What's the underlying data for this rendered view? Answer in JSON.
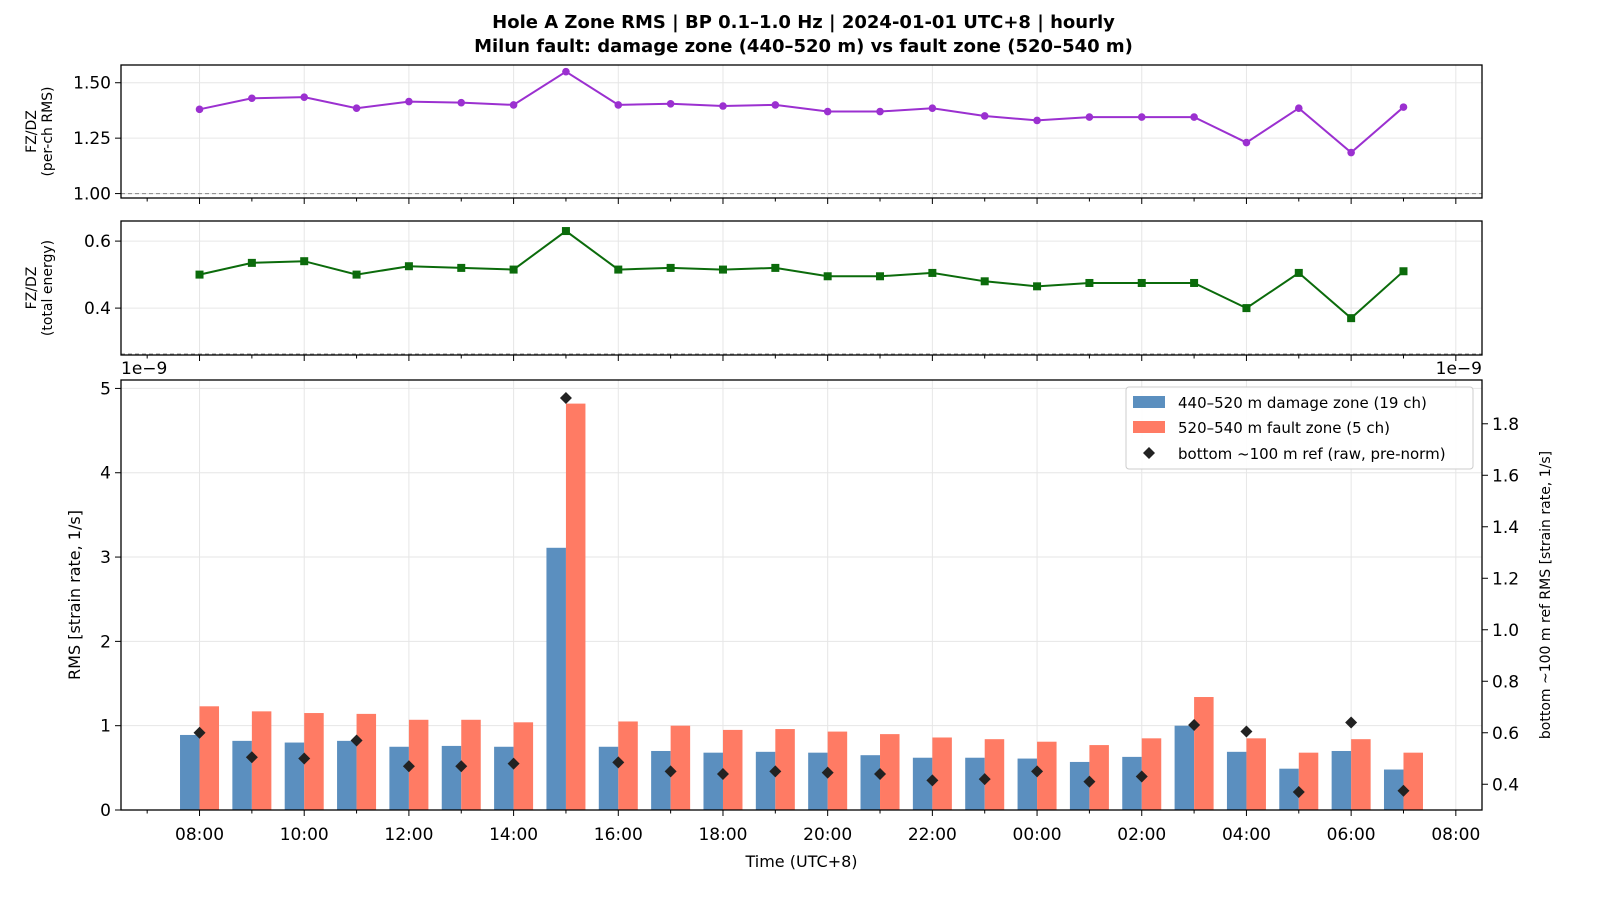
{
  "title_line1": "Hole A Zone RMS  |  BP 0.1–1.0 Hz  |  2024-01-01 UTC+8  |  hourly",
  "title_line2": "Milun fault: damage zone (440–520 m) vs fault zone (520–540 m)",
  "colors": {
    "damage": "#5b8fbf",
    "fault": "#ff7b64",
    "ratio_rms": "#9b30d0",
    "ratio_energy": "#0b6b0b",
    "ref": "#222222"
  },
  "chart_data": [
    {
      "type": "line",
      "ylabel": "FZ/DZ\n(per-ch RMS)",
      "ylim": [
        0.98,
        1.58
      ],
      "yticks": [
        "1.00",
        "1.25",
        "1.50"
      ],
      "reference_line": 1.0,
      "grid": true,
      "x_hours": [
        0,
        1,
        2,
        3,
        4,
        5,
        6,
        7,
        8,
        9,
        10,
        11,
        12,
        13,
        14,
        15,
        16,
        17,
        18,
        19,
        20,
        21,
        22,
        23
      ],
      "series": [
        {
          "values": [
            1.38,
            1.43,
            1.435,
            1.385,
            1.415,
            1.41,
            1.4,
            1.55,
            1.4,
            1.405,
            1.395,
            1.4,
            1.37,
            1.37,
            1.385,
            1.35,
            1.33,
            1.345,
            1.345,
            1.345,
            1.23,
            1.385,
            1.185,
            1.39
          ]
        }
      ]
    },
    {
      "type": "line",
      "ylabel": "FZ/DZ\n(total energy)",
      "ylim": [
        0.26,
        0.66
      ],
      "yticks": [
        "0.4",
        "0.6"
      ],
      "reference_line": 0.263,
      "grid": true,
      "x_hours": [
        0,
        1,
        2,
        3,
        4,
        5,
        6,
        7,
        8,
        9,
        10,
        11,
        12,
        13,
        14,
        15,
        16,
        17,
        18,
        19,
        20,
        21,
        22,
        23
      ],
      "series": [
        {
          "values": [
            0.5,
            0.535,
            0.54,
            0.5,
            0.525,
            0.52,
            0.515,
            0.63,
            0.515,
            0.52,
            0.515,
            0.52,
            0.495,
            0.495,
            0.505,
            0.48,
            0.465,
            0.475,
            0.475,
            0.475,
            0.4,
            0.505,
            0.37,
            0.51
          ]
        }
      ]
    },
    {
      "type": "bar",
      "xlabel": "Time (UTC+8)",
      "ylabel": "RMS  [strain rate, 1/s]",
      "y_scale_label": "1e−9",
      "ylim": [
        0,
        5.1
      ],
      "yticks": [
        "0",
        "1",
        "2",
        "3",
        "4",
        "5"
      ],
      "y2label": "bottom ~100 m ref RMS  [strain rate, 1/s]",
      "y2_scale_label": "1e−9",
      "y2lim": [
        0.3,
        1.97
      ],
      "y2ticks": [
        "0.4",
        "0.6",
        "0.8",
        "1.0",
        "1.2",
        "1.4",
        "1.6",
        "1.8"
      ],
      "x_tick_labels": [
        "08:00",
        "10:00",
        "12:00",
        "14:00",
        "16:00",
        "18:00",
        "20:00",
        "22:00",
        "00:00",
        "02:00",
        "04:00",
        "06:00",
        "08:00"
      ],
      "grid": true,
      "legend_position": "top-right",
      "series": [
        {
          "name": "440–520 m  damage zone (19 ch)",
          "values": [
            0.89,
            0.82,
            0.8,
            0.82,
            0.75,
            0.76,
            0.75,
            3.11,
            0.75,
            0.7,
            0.68,
            0.69,
            0.68,
            0.65,
            0.62,
            0.62,
            0.61,
            0.57,
            0.63,
            1.0,
            0.69,
            0.49,
            0.7,
            0.48
          ]
        },
        {
          "name": "520–540 m  fault zone (5 ch)",
          "values": [
            1.23,
            1.17,
            1.15,
            1.14,
            1.07,
            1.07,
            1.04,
            4.82,
            1.05,
            1.0,
            0.95,
            0.96,
            0.93,
            0.9,
            0.86,
            0.84,
            0.81,
            0.77,
            0.85,
            1.34,
            0.85,
            0.68,
            0.84,
            0.68
          ]
        },
        {
          "name": "bottom ~100 m ref (raw, pre-norm)",
          "axis": "right",
          "values": [
            0.6,
            0.505,
            0.5,
            0.57,
            0.47,
            0.47,
            0.48,
            1.9,
            0.485,
            0.45,
            0.44,
            0.45,
            0.445,
            0.44,
            0.415,
            0.42,
            0.45,
            0.41,
            0.43,
            0.63,
            0.605,
            0.37,
            0.64,
            0.375
          ]
        }
      ]
    }
  ]
}
